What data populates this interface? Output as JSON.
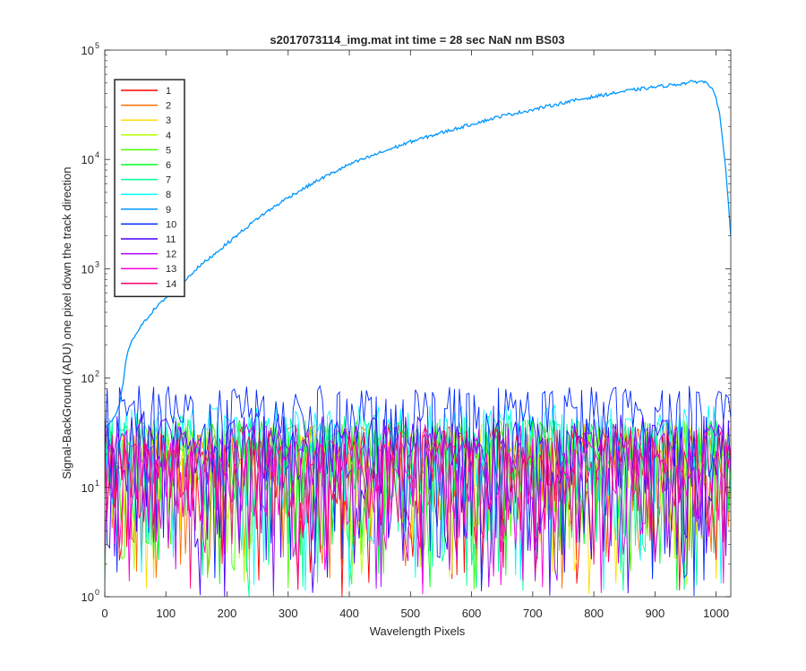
{
  "chart_data": {
    "type": "line",
    "title": "s2017073114_img.mat int time = 28 sec  NaN nm BS03",
    "xlabel": "Wavelength Pixels",
    "ylabel": "Signal-BackGround (ADU) one pixel down the track direction",
    "xlim": [
      0,
      1024
    ],
    "ylim": [
      1,
      100000
    ],
    "yscale": "log",
    "x_ticks": [
      0,
      100,
      200,
      300,
      400,
      500,
      600,
      700,
      800,
      900,
      1000
    ],
    "x_tick_labels": [
      "0",
      "100",
      "200",
      "300",
      "400",
      "500",
      "600",
      "700",
      "800",
      "900",
      "1000"
    ],
    "y_ticks": [
      1,
      10,
      100,
      1000,
      10000,
      100000
    ],
    "y_tick_bases": [
      "10",
      "10",
      "10",
      "10",
      "10",
      "10"
    ],
    "y_tick_exponents": [
      "0",
      "1",
      "2",
      "3",
      "4",
      "5"
    ],
    "legend_position": "top-left",
    "grid": false,
    "series": [
      {
        "name": "1",
        "color": "#ff0000",
        "kind": "noise",
        "base": 20
      },
      {
        "name": "2",
        "color": "#ff6e00",
        "kind": "noise",
        "base": 20
      },
      {
        "name": "3",
        "color": "#ffdc00",
        "kind": "noise",
        "base": 20
      },
      {
        "name": "4",
        "color": "#b4ff00",
        "kind": "noise",
        "base": 20
      },
      {
        "name": "5",
        "color": "#46ff00",
        "kind": "noise",
        "base": 22
      },
      {
        "name": "6",
        "color": "#00ff28",
        "kind": "noise",
        "base": 22
      },
      {
        "name": "7",
        "color": "#00ff96",
        "kind": "noise",
        "base": 24
      },
      {
        "name": "8",
        "color": "#00ffff",
        "kind": "noise",
        "base": 30
      },
      {
        "name": "9",
        "color": "#0096ff",
        "kind": "signal",
        "x": [
          0,
          10,
          20,
          25,
          30,
          35,
          40,
          50,
          60,
          70,
          80,
          100,
          120,
          150,
          200,
          250,
          300,
          350,
          400,
          450,
          500,
          550,
          600,
          650,
          700,
          750,
          800,
          850,
          900,
          940,
          960,
          975,
          985,
          995,
          1005,
          1015,
          1024
        ],
        "values": [
          35,
          40,
          48,
          60,
          90,
          150,
          190,
          250,
          300,
          360,
          420,
          540,
          680,
          1000,
          1700,
          2900,
          4500,
          6500,
          9000,
          11500,
          14500,
          17500,
          21000,
          25000,
          28500,
          33000,
          37500,
          42000,
          46000,
          49000,
          51000,
          52000,
          50000,
          45000,
          28000,
          9000,
          2000
        ]
      },
      {
        "name": "10",
        "color": "#0028ff",
        "kind": "noise",
        "base": 45
      },
      {
        "name": "11",
        "color": "#4600ff",
        "kind": "noise",
        "base": 25
      },
      {
        "name": "12",
        "color": "#b400ff",
        "kind": "noise",
        "base": 20
      },
      {
        "name": "13",
        "color": "#ff00dc",
        "kind": "noise",
        "base": 15
      },
      {
        "name": "14",
        "color": "#ff006e",
        "kind": "noise",
        "base": 18
      }
    ]
  }
}
